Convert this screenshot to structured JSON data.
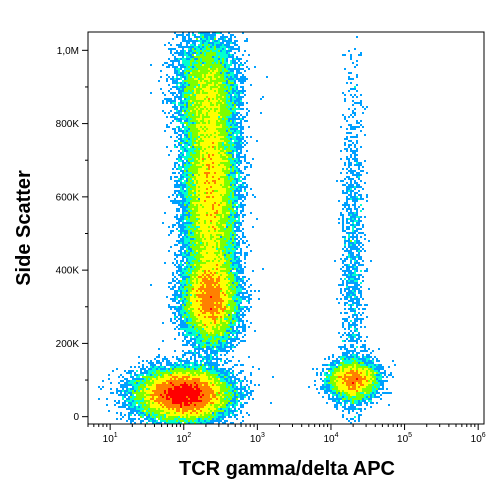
{
  "chart_data": {
    "type": "scatter",
    "subtype": "flow-cytometry-density-dot-plot",
    "title": "",
    "xlabel": "TCR gamma/delta APC",
    "ylabel": "Side Scatter",
    "x_scale": "log",
    "xlim": [
      5,
      1200000
    ],
    "ylim": [
      -20000,
      1050000
    ],
    "x_ticks": [
      {
        "value": 10,
        "base": "10",
        "exp": "1"
      },
      {
        "value": 100,
        "base": "10",
        "exp": "2"
      },
      {
        "value": 1000,
        "base": "10",
        "exp": "3"
      },
      {
        "value": 10000,
        "base": "10",
        "exp": "4"
      },
      {
        "value": 100000,
        "base": "10",
        "exp": "5"
      },
      {
        "value": 1000000,
        "base": "10",
        "exp": "6"
      }
    ],
    "y_ticks": [
      {
        "value": 0,
        "label": "0"
      },
      {
        "value": 200000,
        "label": "200K"
      },
      {
        "value": 400000,
        "label": "400K"
      },
      {
        "value": 600000,
        "label": "600K"
      },
      {
        "value": 800000,
        "label": "800K"
      },
      {
        "value": 1000000,
        "label": "1,0M"
      }
    ],
    "grid": false,
    "colormap": [
      "#0000ff",
      "#00a0ff",
      "#00ffd0",
      "#7dff00",
      "#ffff00",
      "#ff8000",
      "#ff0000"
    ],
    "populations": [
      {
        "x_center": 100,
        "y_center": 60000,
        "x_spread_decades": 0.28,
        "y_spread": 32000,
        "weight": 0.3
      },
      {
        "x_center": 230,
        "y_center": 620000,
        "x_spread_decades": 0.17,
        "y_spread": 170000,
        "weight": 0.3
      },
      {
        "x_center": 230,
        "y_center": 320000,
        "x_spread_decades": 0.17,
        "y_spread": 55000,
        "weight": 0.15
      },
      {
        "x_center": 200,
        "y_center": 900000,
        "x_spread_decades": 0.2,
        "y_spread": 70000,
        "weight": 0.06
      },
      {
        "x_center": 20000,
        "y_center": 100000,
        "x_spread_decades": 0.16,
        "y_spread": 25000,
        "weight": 0.07
      },
      {
        "x_center": 20000,
        "y_center": 400000,
        "x_spread_decades": 0.08,
        "y_spread": 250000,
        "weight": 0.015
      }
    ]
  }
}
